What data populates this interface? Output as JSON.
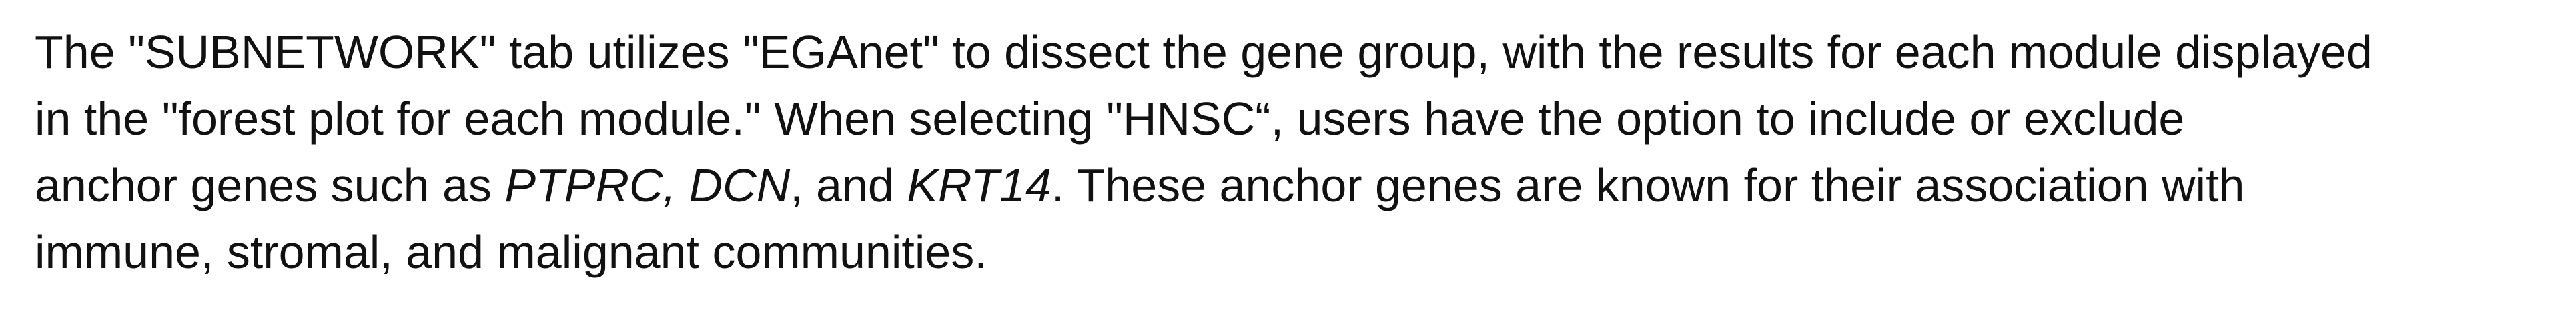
{
  "paragraph": {
    "line1": "The \"SUBNETWORK\" tab utilizes \"EGAnet\" to dissect the gene group, with the results for each module displayed",
    "line2": "in the \"forest plot for each module.\" When selecting \"HNSC“, users have the option to include or exclude",
    "line3": {
      "before": "anchor genes such as ",
      "gene1": "PTPRC, DCN",
      "middle": ", and ",
      "gene2": "KRT14",
      "after": ". These anchor genes are known for their association with"
    },
    "line4": "immune, stromal, and malignant communities."
  }
}
